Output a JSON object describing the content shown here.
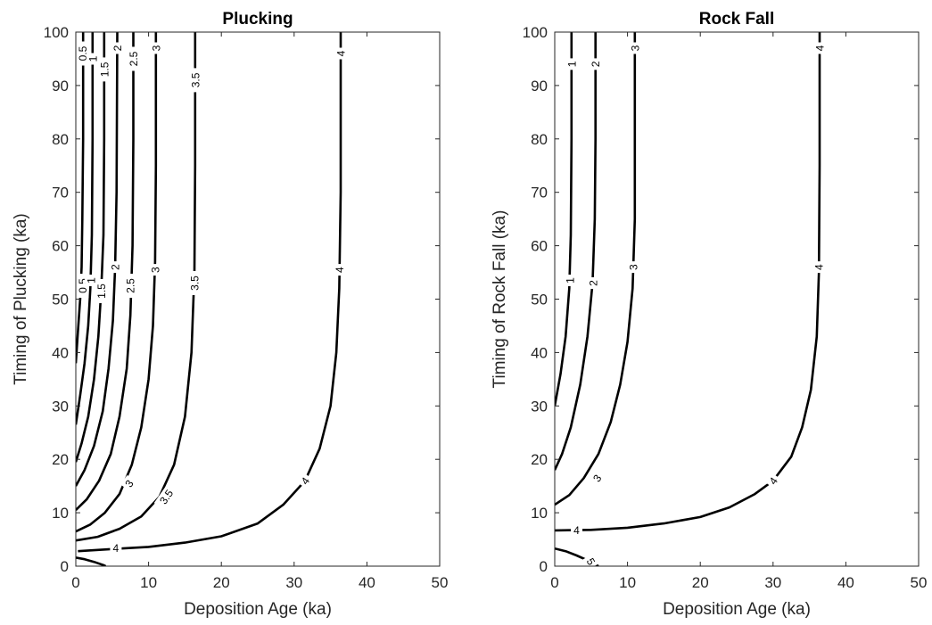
{
  "chart_data": [
    {
      "type": "contour",
      "title": "Plucking",
      "xlabel": "Deposition Age (ka)",
      "ylabel": "Timing of Plucking (ka)",
      "xlim": [
        0,
        50
      ],
      "ylim": [
        0,
        100
      ],
      "xticks": [
        "0",
        "10",
        "20",
        "30",
        "40",
        "50"
      ],
      "yticks": [
        "0",
        "10",
        "20",
        "30",
        "40",
        "50",
        "60",
        "70",
        "80",
        "90",
        "100"
      ],
      "grid": false,
      "contours": [
        {
          "level": "0.5",
          "points": [
            [
              0,
              38
            ],
            [
              0.3,
              44
            ],
            [
              0.6,
              50
            ],
            [
              0.8,
              56
            ],
            [
              0.9,
              65
            ],
            [
              1.0,
              80
            ],
            [
              1.0,
              100
            ]
          ]
        },
        {
          "level": "1",
          "points": [
            [
              0,
              26.5
            ],
            [
              0.6,
              32
            ],
            [
              1.2,
              38
            ],
            [
              1.7,
              45
            ],
            [
              2.0,
              52
            ],
            [
              2.2,
              62
            ],
            [
              2.3,
              80
            ],
            [
              2.3,
              100
            ]
          ]
        },
        {
          "level": "1.5",
          "points": [
            [
              0,
              19.5
            ],
            [
              0.8,
              23
            ],
            [
              1.7,
              28
            ],
            [
              2.5,
              35
            ],
            [
              3.1,
              43
            ],
            [
              3.5,
              52
            ],
            [
              3.8,
              62
            ],
            [
              3.9,
              80
            ],
            [
              3.9,
              100
            ]
          ]
        },
        {
          "level": "2",
          "points": [
            [
              0,
              15
            ],
            [
              1.2,
              18
            ],
            [
              2.5,
              22.5
            ],
            [
              3.7,
              29
            ],
            [
              4.5,
              37
            ],
            [
              5.1,
              46
            ],
            [
              5.4,
              56
            ],
            [
              5.6,
              70
            ],
            [
              5.7,
              100
            ]
          ]
        },
        {
          "level": "2.5",
          "points": [
            [
              0,
              10.5
            ],
            [
              1.5,
              12.5
            ],
            [
              3.2,
              16
            ],
            [
              4.8,
              21
            ],
            [
              6.0,
              28
            ],
            [
              7.0,
              37
            ],
            [
              7.5,
              47
            ],
            [
              7.8,
              60
            ],
            [
              7.9,
              80
            ],
            [
              7.9,
              100
            ]
          ]
        },
        {
          "level": "3",
          "points": [
            [
              0,
              6.5
            ],
            [
              2,
              7.8
            ],
            [
              4,
              10
            ],
            [
              6,
              13.5
            ],
            [
              7.7,
              19
            ],
            [
              9.0,
              26
            ],
            [
              10.0,
              35
            ],
            [
              10.6,
              45
            ],
            [
              10.9,
              57
            ],
            [
              11.0,
              75
            ],
            [
              11.0,
              100
            ]
          ]
        },
        {
          "level": "3.5",
          "points": [
            [
              0,
              4.8
            ],
            [
              3,
              5.5
            ],
            [
              6,
              7
            ],
            [
              9,
              9.3
            ],
            [
              11.5,
              13
            ],
            [
              13.5,
              19
            ],
            [
              15.0,
              28
            ],
            [
              15.9,
              40
            ],
            [
              16.3,
              55
            ],
            [
              16.4,
              75
            ],
            [
              16.4,
              100
            ]
          ]
        },
        {
          "level": "4",
          "points": [
            [
              0.3,
              2.8
            ],
            [
              5,
              3.2
            ],
            [
              10,
              3.6
            ],
            [
              15,
              4.4
            ],
            [
              20,
              5.6
            ],
            [
              25,
              8
            ],
            [
              28.5,
              11.5
            ],
            [
              31.5,
              16
            ],
            [
              33.5,
              22
            ],
            [
              35,
              30
            ],
            [
              35.8,
              40
            ],
            [
              36.2,
              52
            ],
            [
              36.4,
              70
            ],
            [
              36.4,
              100
            ]
          ]
        },
        {
          "level": "",
          "points": [
            [
              0,
              1.6
            ],
            [
              1.2,
              1.3
            ],
            [
              2.5,
              0.8
            ],
            [
              3.8,
              0.2
            ],
            [
              4.1,
              0
            ]
          ]
        }
      ],
      "labels": [
        {
          "text": "0.5",
          "at": [
            0.9,
            96
          ],
          "angle": -90
        },
        {
          "text": "1",
          "at": [
            2.3,
            95
          ],
          "angle": -90
        },
        {
          "text": "1.5",
          "at": [
            3.9,
            93
          ],
          "angle": -90
        },
        {
          "text": "2",
          "at": [
            5.7,
            97
          ],
          "angle": -90
        },
        {
          "text": "2.5",
          "at": [
            7.9,
            95
          ],
          "angle": -90
        },
        {
          "text": "3",
          "at": [
            11.0,
            97
          ],
          "angle": -90
        },
        {
          "text": "3.5",
          "at": [
            16.4,
            91
          ],
          "angle": -90
        },
        {
          "text": "4",
          "at": [
            36.4,
            96
          ],
          "angle": -90
        },
        {
          "text": "0.5",
          "at": [
            0.9,
            52.5
          ],
          "angle": -90
        },
        {
          "text": "1",
          "at": [
            2.1,
            53.5
          ],
          "angle": -90
        },
        {
          "text": "1.5",
          "at": [
            3.5,
            51.5
          ],
          "angle": -90
        },
        {
          "text": "2",
          "at": [
            5.4,
            56
          ],
          "angle": -90
        },
        {
          "text": "2.5",
          "at": [
            7.5,
            52.5
          ],
          "angle": -90
        },
        {
          "text": "3",
          "at": [
            10.9,
            55.5
          ],
          "angle": -90
        },
        {
          "text": "3.5",
          "at": [
            16.3,
            53
          ],
          "angle": -90
        },
        {
          "text": "4",
          "at": [
            36.2,
            55.5
          ],
          "angle": -90
        },
        {
          "text": "3",
          "at": [
            7.3,
            15.5
          ],
          "angle": -55
        },
        {
          "text": "3.5",
          "at": [
            12.4,
            13
          ],
          "angle": -55
        },
        {
          "text": "4",
          "at": [
            31.5,
            16
          ],
          "angle": -55
        },
        {
          "text": "4",
          "at": [
            5.5,
            3.4
          ],
          "angle": 0
        }
      ]
    },
    {
      "type": "contour",
      "title": "Rock Fall",
      "xlabel": "Deposition Age (ka)",
      "ylabel": "Timing of Rock Fall (ka)",
      "xlim": [
        0,
        50
      ],
      "ylim": [
        0,
        100
      ],
      "xticks": [
        "0",
        "10",
        "20",
        "30",
        "40",
        "50"
      ],
      "yticks": [
        "0",
        "10",
        "20",
        "30",
        "40",
        "50",
        "60",
        "70",
        "80",
        "90",
        "100"
      ],
      "grid": false,
      "contours": [
        {
          "level": "1",
          "points": [
            [
              0,
              30
            ],
            [
              0.8,
              36
            ],
            [
              1.5,
              43
            ],
            [
              2.0,
              52
            ],
            [
              2.2,
              62
            ],
            [
              2.3,
              80
            ],
            [
              2.3,
              100
            ]
          ]
        },
        {
          "level": "2",
          "points": [
            [
              0,
              18
            ],
            [
              1.0,
              21
            ],
            [
              2.2,
              26
            ],
            [
              3.5,
              34
            ],
            [
              4.5,
              43
            ],
            [
              5.2,
              53
            ],
            [
              5.5,
              65
            ],
            [
              5.6,
              80
            ],
            [
              5.6,
              100
            ]
          ]
        },
        {
          "level": "3",
          "points": [
            [
              0,
              11.5
            ],
            [
              2,
              13.3
            ],
            [
              4,
              16.5
            ],
            [
              6,
              21
            ],
            [
              7.7,
              27
            ],
            [
              9.0,
              34
            ],
            [
              10.0,
              42
            ],
            [
              10.7,
              52
            ],
            [
              11.0,
              65
            ],
            [
              11.0,
              100
            ]
          ]
        },
        {
          "level": "4",
          "points": [
            [
              0,
              6.7
            ],
            [
              5,
              6.8
            ],
            [
              10,
              7.2
            ],
            [
              15,
              8.0
            ],
            [
              20,
              9.2
            ],
            [
              24,
              11
            ],
            [
              27.5,
              13.5
            ],
            [
              30,
              16
            ],
            [
              32.5,
              20.5
            ],
            [
              34,
              26
            ],
            [
              35.2,
              33
            ],
            [
              36,
              43
            ],
            [
              36.3,
              55
            ],
            [
              36.4,
              75
            ],
            [
              36.4,
              100
            ]
          ]
        },
        {
          "level": "5",
          "points": [
            [
              0,
              3.3
            ],
            [
              1.5,
              2.8
            ],
            [
              3.0,
              2.0
            ],
            [
              4.5,
              1.1
            ],
            [
              6.0,
              0
            ]
          ]
        }
      ],
      "labels": [
        {
          "text": "1",
          "at": [
            2.3,
            94
          ],
          "angle": -90
        },
        {
          "text": "2",
          "at": [
            5.6,
            94
          ],
          "angle": -90
        },
        {
          "text": "3",
          "at": [
            11.0,
            97
          ],
          "angle": -90
        },
        {
          "text": "4",
          "at": [
            36.4,
            97
          ],
          "angle": -90
        },
        {
          "text": "1",
          "at": [
            2.1,
            53.5
          ],
          "angle": -90
        },
        {
          "text": "2",
          "at": [
            5.3,
            53
          ],
          "angle": -90
        },
        {
          "text": "3",
          "at": [
            10.8,
            56
          ],
          "angle": -90
        },
        {
          "text": "4",
          "at": [
            36.3,
            56
          ],
          "angle": -90
        },
        {
          "text": "3",
          "at": [
            5.8,
            16.5
          ],
          "angle": -55
        },
        {
          "text": "4",
          "at": [
            30,
            16
          ],
          "angle": -55
        },
        {
          "text": "4",
          "at": [
            3.0,
            6.8
          ],
          "angle": 0
        },
        {
          "text": "5",
          "at": [
            5.0,
            0.9
          ],
          "angle": 60
        }
      ]
    }
  ]
}
